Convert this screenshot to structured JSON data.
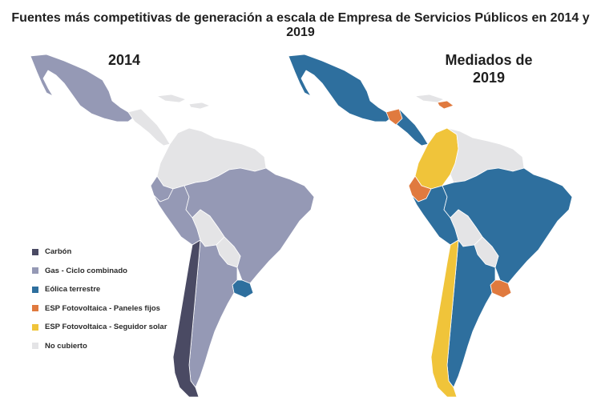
{
  "title": "Fuentes más competitivas de generación a escala de Empresa de Servicios Públicos en 2014 y 2019",
  "panels": {
    "left": {
      "title": "2014"
    },
    "right": {
      "title_line1": "Mediados de",
      "title_line2": "2019"
    }
  },
  "legend": [
    {
      "label": "Carbón",
      "color": "#4a4a63"
    },
    {
      "label": "Gas - Ciclo combinado",
      "color": "#9599b5"
    },
    {
      "label": "Eólica terrestre",
      "color": "#2e6f9e"
    },
    {
      "label": "ESP Fotovoltaica - Paneles fijos",
      "color": "#e07a3f"
    },
    {
      "label": "ESP Fotovoltaica - Seguidor solar",
      "color": "#f0c43a"
    },
    {
      "label": "No cubierto",
      "color": "#e4e4e6"
    }
  ],
  "regions_2014": {
    "mexico": "gas",
    "central_america": "none",
    "caribbean": "none",
    "colombia_venezuela_guianas": "none",
    "ecuador": "gas",
    "peru": "gas",
    "bolivia": "none",
    "brazil": "gas",
    "paraguay": "none",
    "uruguay": "wind",
    "argentina": "gas",
    "chile": "coal"
  },
  "regions_2019": {
    "mexico": "wind",
    "guatemala": "pv_fixed",
    "central_america": "wind",
    "caribbean": "none",
    "haiti_dr": "pv_fixed",
    "colombia": "pv_tracker",
    "venezuela_guianas": "none",
    "ecuador": "pv_fixed",
    "peru": "wind",
    "bolivia": "none",
    "brazil": "wind",
    "paraguay": "none",
    "uruguay": "pv_fixed",
    "argentina": "wind",
    "chile": "pv_tracker"
  },
  "colors": {
    "coal": "#4a4a63",
    "gas": "#9599b5",
    "wind": "#2e6f9e",
    "pv_fixed": "#e07a3f",
    "pv_tracker": "#f0c43a",
    "none": "#e4e4e6"
  }
}
